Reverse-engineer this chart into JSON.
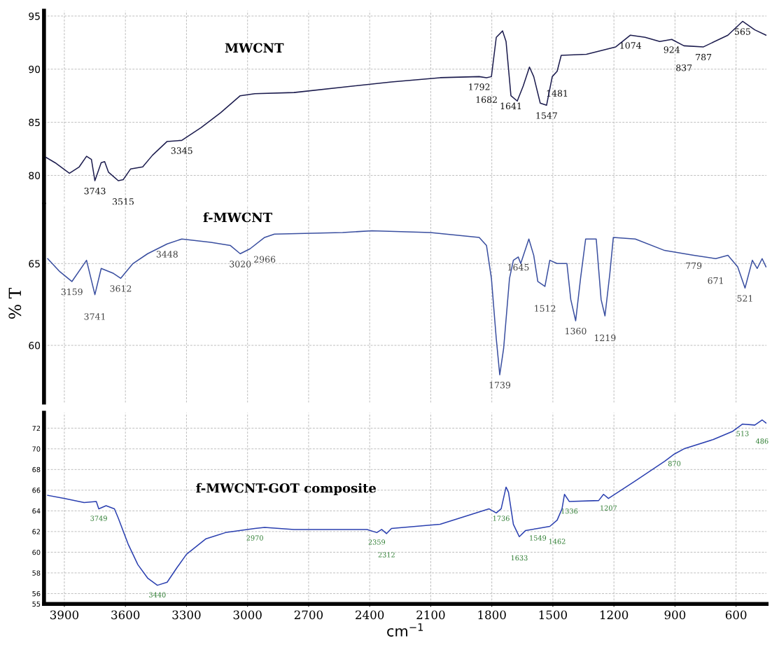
{
  "chart_data": [
    {
      "type": "line",
      "title": "MWCNT",
      "xlim": [
        4000,
        450
      ],
      "ylim": [
        77.5,
        95.5
      ],
      "xticks": [
        3900,
        3600,
        3300,
        3000,
        2700,
        2400,
        2100,
        1800,
        1500,
        1200,
        900,
        600
      ],
      "yticks": [
        80,
        85,
        90,
        95
      ],
      "tick_labels": "y",
      "grid": true,
      "legend": false,
      "series": [
        {
          "color": "#1c1c4e",
          "x": [
            3990,
            3946,
            3875,
            3827,
            3791,
            3767,
            3750,
            3719,
            3702,
            3683,
            3635,
            3611,
            3575,
            3515,
            3467,
            3395,
            3323,
            3228,
            3132,
            3036,
            2964,
            2772,
            2533,
            2293,
            2054,
            1862,
            1826,
            1802,
            1778,
            1747,
            1730,
            1706,
            1675,
            1646,
            1615,
            1594,
            1562,
            1531,
            1503,
            1479,
            1459,
            1335,
            1191,
            1119,
            1047,
            975,
            916,
            856,
            760,
            640,
            568,
            508,
            453
          ],
          "values": [
            81.7,
            81.2,
            80.2,
            80.8,
            81.8,
            81.5,
            79.5,
            81.2,
            81.3,
            80.3,
            79.5,
            79.6,
            80.6,
            80.8,
            81.9,
            83.2,
            83.3,
            84.5,
            85.9,
            87.5,
            87.7,
            87.8,
            88.3,
            88.8,
            89.2,
            89.3,
            89.2,
            89.3,
            93.0,
            93.6,
            92.6,
            87.5,
            87.0,
            88.4,
            90.2,
            89.3,
            86.8,
            86.6,
            89.3,
            89.8,
            91.3,
            91.4,
            92.1,
            93.2,
            93.0,
            92.6,
            92.8,
            92.2,
            92.1,
            93.2,
            94.5,
            93.7,
            93.2
          ]
        }
      ],
      "annotations": [
        {
          "text": "3743",
          "x": 3750,
          "y": 79.5
        },
        {
          "text": "3515",
          "x": 3611,
          "y": 79.6
        },
        {
          "text": "3345",
          "x": 3323,
          "y": 83.3
        },
        {
          "text": "1792",
          "x": 1862,
          "y": 89.3
        },
        {
          "text": "1682",
          "x": 1826,
          "y": 89.2
        },
        {
          "text": "1641",
          "x": 1706,
          "y": 87.5
        },
        {
          "text": "1547",
          "x": 1531,
          "y": 86.6
        },
        {
          "text": "1481",
          "x": 1479,
          "y": 89.8
        },
        {
          "text": "1074",
          "x": 1119,
          "y": 93.2
        },
        {
          "text": "924",
          "x": 916,
          "y": 92.8
        },
        {
          "text": "837",
          "x": 856,
          "y": 92.2
        },
        {
          "text": "787",
          "x": 760,
          "y": 92.1
        },
        {
          "text": "565",
          "x": 568,
          "y": 94.5
        }
      ]
    },
    {
      "type": "line",
      "title": "f-MWCNT",
      "ylabel": "% T",
      "xlim": [
        4000,
        450
      ],
      "ylim": [
        56.5,
        68.6
      ],
      "xticks": [
        3900,
        3600,
        3300,
        3000,
        2700,
        2400,
        2100,
        1800,
        1500,
        1200,
        900,
        600
      ],
      "yticks": [
        60,
        65
      ],
      "tick_labels": "y",
      "grid": true,
      "legend": false,
      "series": [
        {
          "color": "#3a4fa0",
          "x": [
            3982,
            3922,
            3863,
            3791,
            3750,
            3719,
            3659,
            3623,
            3563,
            3491,
            3395,
            3323,
            3180,
            3084,
            3036,
            2988,
            2916,
            2868,
            2533,
            2389,
            2102,
            1862,
            1826,
            1802,
            1778,
            1761,
            1742,
            1713,
            1694,
            1670,
            1658,
            1618,
            1594,
            1574,
            1539,
            1515,
            1479,
            1431,
            1412,
            1388,
            1364,
            1339,
            1287,
            1263,
            1244,
            1220,
            1203,
            1095,
            951,
            808,
            700,
            640,
            592,
            556,
            520,
            496,
            472,
            453
          ],
          "values": [
            65.3,
            64.5,
            63.9,
            65.2,
            63.1,
            64.7,
            64.4,
            64.1,
            65.0,
            65.6,
            66.2,
            66.5,
            66.3,
            66.1,
            65.6,
            65.9,
            66.6,
            66.8,
            66.9,
            67.0,
            66.9,
            66.6,
            66.1,
            64.1,
            60.4,
            58.2,
            59.8,
            64.1,
            65.2,
            65.4,
            65.0,
            66.5,
            65.5,
            63.9,
            63.6,
            65.2,
            65.0,
            65.0,
            62.8,
            61.5,
            64.1,
            66.5,
            66.5,
            62.8,
            61.8,
            64.4,
            66.6,
            66.5,
            65.8,
            65.5,
            65.3,
            65.5,
            64.8,
            63.5,
            65.2,
            64.7,
            65.3,
            64.8
          ]
        }
      ],
      "annotations": [
        {
          "text": "3159",
          "x": 3863,
          "y": 63.9
        },
        {
          "text": "3741",
          "x": 3750,
          "y": 63.1
        },
        {
          "text": "3612",
          "x": 3623,
          "y": 64.1
        },
        {
          "text": "3448",
          "x": 3395,
          "y": 66.2
        },
        {
          "text": "3020",
          "x": 3036,
          "y": 65.6
        },
        {
          "text": "2966",
          "x": 2916,
          "y": 66.6
        },
        {
          "text": "1645",
          "x": 1670,
          "y": 65.4
        },
        {
          "text": "1512",
          "x": 1539,
          "y": 63.6
        },
        {
          "text": "1360",
          "x": 1388,
          "y": 61.5
        },
        {
          "text": "1219",
          "x": 1244,
          "y": 61.8
        },
        {
          "text": "1739",
          "x": 1761,
          "y": 58.2
        },
        {
          "text": "779",
          "x": 808,
          "y": 65.5
        },
        {
          "text": "671",
          "x": 700,
          "y": 65.3
        },
        {
          "text": "521",
          "x": 556,
          "y": 63.5
        }
      ]
    },
    {
      "type": "line",
      "title": "f-MWCNT-GOT composite",
      "xlabel": "cm$^{−1}$",
      "xlim": [
        4000,
        450
      ],
      "ylim": [
        55,
        73.5
      ],
      "xticks": [
        3900,
        3600,
        3300,
        3000,
        2700,
        2400,
        2100,
        1800,
        1500,
        1200,
        900,
        600
      ],
      "yticks": [
        55,
        56,
        58,
        60,
        62,
        64,
        66,
        68,
        70,
        72
      ],
      "grid": true,
      "legend": false,
      "series": [
        {
          "color": "#2b40b0",
          "x": [
            3982,
            3898,
            3803,
            3743,
            3731,
            3695,
            3654,
            3635,
            3587,
            3539,
            3491,
            3443,
            3395,
            3347,
            3300,
            3204,
            3108,
            2964,
            2916,
            2772,
            2413,
            2365,
            2341,
            2317,
            2293,
            2054,
            1814,
            1778,
            1754,
            1730,
            1718,
            1694,
            1665,
            1634,
            1574,
            1515,
            1479,
            1455,
            1443,
            1419,
            1275,
            1251,
            1227,
            1095,
            951,
            903,
            856,
            712,
            616,
            568,
            508,
            472,
            453
          ],
          "values": [
            65.5,
            65.2,
            64.8,
            64.9,
            64.2,
            64.5,
            64.2,
            63.3,
            60.8,
            58.8,
            57.5,
            56.8,
            57.1,
            58.5,
            59.8,
            61.3,
            61.9,
            62.3,
            62.4,
            62.2,
            62.2,
            61.9,
            62.2,
            61.8,
            62.3,
            62.7,
            64.2,
            63.8,
            64.2,
            66.3,
            65.8,
            62.7,
            61.5,
            62.1,
            62.3,
            62.5,
            63.1,
            64.2,
            65.6,
            64.9,
            65.0,
            65.6,
            65.2,
            66.9,
            68.8,
            69.5,
            70.0,
            70.9,
            71.7,
            72.4,
            72.3,
            72.8,
            72.5
          ]
        }
      ],
      "annotations": [
        {
          "text": "3749",
          "x": 3731,
          "y": 64.2
        },
        {
          "text": "3440",
          "x": 3443,
          "y": 56.8
        },
        {
          "text": "2970",
          "x": 2964,
          "y": 62.3
        },
        {
          "text": "2359",
          "x": 2365,
          "y": 61.9
        },
        {
          "text": "2312",
          "x": 2317,
          "y": 61.8
        },
        {
          "text": "1736",
          "x": 1754,
          "y": 64.2
        },
        {
          "text": "1633",
          "x": 1665,
          "y": 61.5
        },
        {
          "text": "1549",
          "x": 1574,
          "y": 62.3
        },
        {
          "text": "1462",
          "x": 1479,
          "y": 63.1
        },
        {
          "text": "1336",
          "x": 1419,
          "y": 64.9
        },
        {
          "text": "1207",
          "x": 1227,
          "y": 65.2
        },
        {
          "text": "870",
          "x": 903,
          "y": 69.5
        },
        {
          "text": "513",
          "x": 568,
          "y": 72.4
        },
        {
          "text": "486",
          "x": 472,
          "y": 72.8
        }
      ]
    }
  ]
}
